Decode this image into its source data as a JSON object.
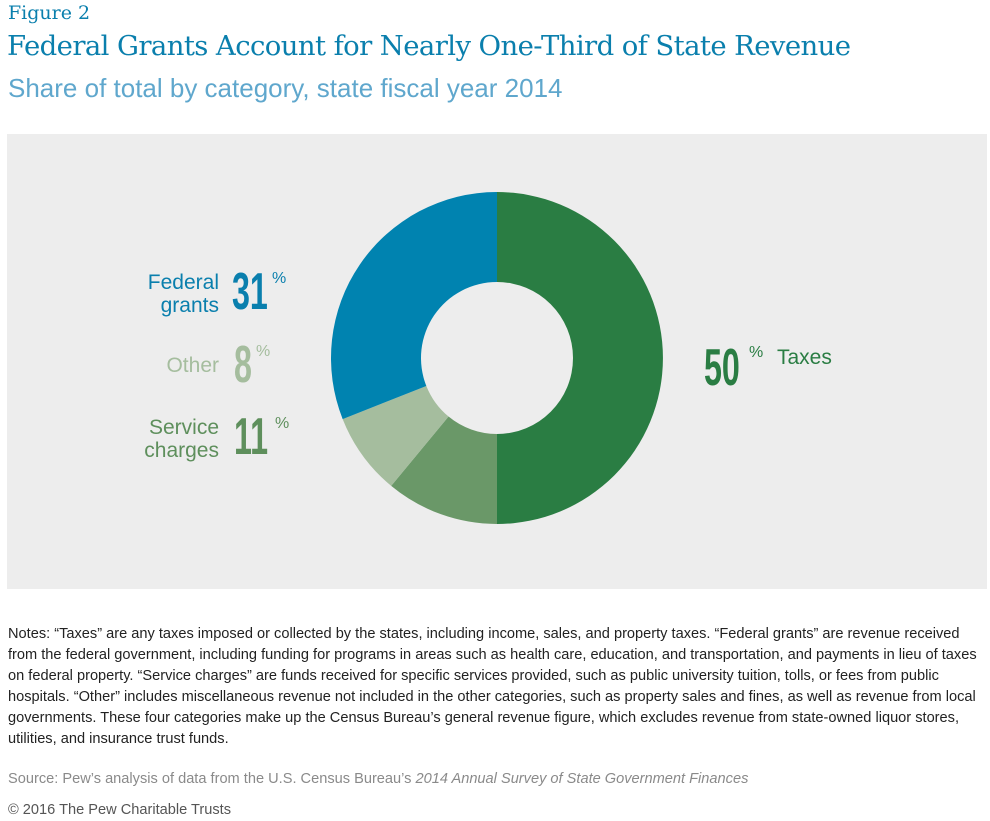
{
  "figure_label": "Figure 2",
  "title": "Federal Grants Account for Nearly One-Third of State Revenue",
  "subtitle": "Share of total by category, state fiscal year 2014",
  "chart_data": {
    "type": "pie",
    "donut": true,
    "slices": [
      {
        "name": "Taxes",
        "value": 50,
        "label": "50",
        "color": "#2a7d43"
      },
      {
        "name": "Service charges",
        "value": 11,
        "label": "11",
        "color": "#6a9868",
        "line1": "Service",
        "line2": "charges"
      },
      {
        "name": "Other",
        "value": 8,
        "label": "8",
        "color": "#a5bd9e",
        "line1": "Other"
      },
      {
        "name": "Federal grants",
        "value": 31,
        "label": "31",
        "color": "#0083b0",
        "line1": "Federal",
        "line2": "grants"
      }
    ],
    "percent_sign": "%",
    "background": "#ededed"
  },
  "notes": "Notes: “Taxes” are any taxes imposed or collected by the states, including income, sales, and property taxes. “Federal grants” are revenue received from the federal government, including funding for programs in areas such as health care, education, and transportation, and payments in lieu of taxes on federal property. “Service charges” are funds received for specific services provided, such as public university tuition, tolls, or fees from public hospitals. “Other” includes miscellaneous revenue not included in the other categories, such as property sales and fines, as well as revenue from local governments. These four categories make up the Census Bureau’s general revenue figure, which excludes revenue from state-owned liquor stores, utilities, and insurance trust funds.",
  "source_prefix": "Source: Pew’s analysis of data from the U.S. Census Bureau’s ",
  "source_italic": "2014 Annual Survey of State Government Finances",
  "copyright": "© 2016 The Pew Charitable Trusts"
}
